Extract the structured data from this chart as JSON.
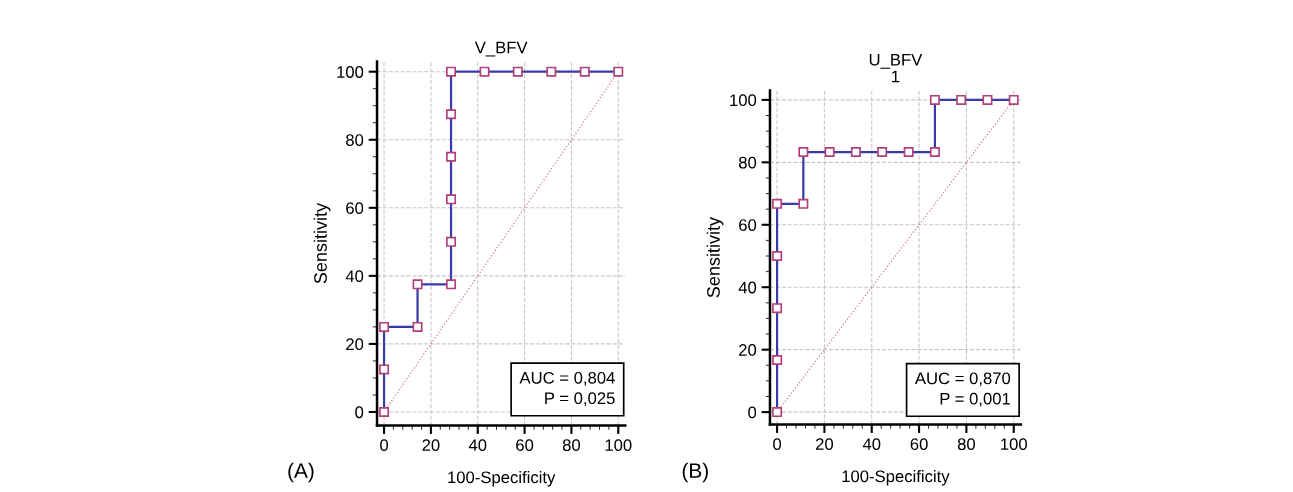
{
  "chart_data": [
    {
      "type": "line",
      "title": "V_BFV",
      "xlabel": "100-Specificity",
      "ylabel": "Sensitivity",
      "xlim": [
        -3,
        103
      ],
      "ylim": [
        -4,
        103
      ],
      "xticks": [
        0,
        20,
        40,
        60,
        80,
        100
      ],
      "yticks": [
        0,
        20,
        40,
        60,
        80,
        100
      ],
      "grid": true,
      "marker": "square",
      "annotations": [
        "AUC = 0,804\nP = 0,025",
        "(A)"
      ],
      "series": [
        {
          "color": "#3a3aa8",
          "x": [
            0,
            0,
            0,
            14.3,
            14.3,
            28.6,
            28.6,
            28.6,
            28.6,
            28.6,
            28.6,
            42.9,
            57.1,
            71.4,
            85.7,
            100
          ],
          "values": [
            0,
            12.5,
            25,
            25,
            37.5,
            37.5,
            50,
            62.5,
            75,
            87.5,
            100,
            100,
            100,
            100,
            100,
            100
          ]
        },
        {
          "color": "#d08080",
          "x": [
            0,
            100
          ],
          "values": [
            0,
            100
          ],
          "line_style": "dotted",
          "marker": "none"
        }
      ]
    },
    {
      "type": "line",
      "title": "U_BFV\n1",
      "xlabel": "100-Specificity",
      "ylabel": "Sensitivity",
      "xlim": [
        -3,
        103
      ],
      "ylim": [
        -4,
        103
      ],
      "xticks": [
        0,
        20,
        40,
        60,
        80,
        100
      ],
      "yticks": [
        0,
        20,
        40,
        60,
        80,
        100
      ],
      "grid": true,
      "marker": "square",
      "annotations": [
        "AUC = 0,870\nP = 0,001",
        "(B)"
      ],
      "series": [
        {
          "color": "#3a3aa8",
          "x": [
            0,
            0,
            0,
            0,
            0,
            11.1,
            11.1,
            22.2,
            33.3,
            44.4,
            55.6,
            66.7,
            66.7,
            77.8,
            88.9,
            100
          ],
          "values": [
            0,
            16.7,
            33.3,
            50,
            66.7,
            66.7,
            83.3,
            83.3,
            83.3,
            83.3,
            83.3,
            83.3,
            100,
            100,
            100,
            100
          ]
        },
        {
          "color": "#d08080",
          "x": [
            0,
            100
          ],
          "values": [
            0,
            100
          ],
          "line_style": "dotted",
          "marker": "none"
        }
      ]
    }
  ]
}
